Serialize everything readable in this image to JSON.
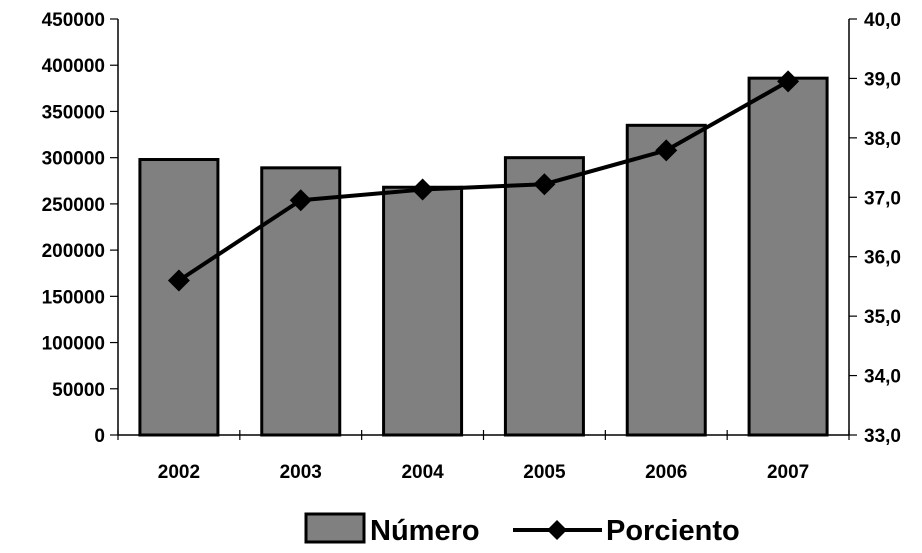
{
  "chart_data": {
    "type": "bar",
    "categories": [
      "2002",
      "2003",
      "2004",
      "2005",
      "2006",
      "2007"
    ],
    "series": [
      {
        "name": "Número",
        "type": "bar",
        "axis": "left",
        "values": [
          298000,
          289000,
          268000,
          300000,
          335000,
          386000
        ]
      },
      {
        "name": "Porciento",
        "type": "line",
        "axis": "right",
        "values": [
          35.6,
          36.95,
          37.13,
          37.22,
          37.79,
          38.95
        ]
      }
    ],
    "y_left": {
      "ylim": [
        0,
        450000
      ],
      "ticks": [
        "0",
        "50000",
        "100000",
        "150000",
        "200000",
        "250000",
        "300000",
        "350000",
        "400000",
        "450000"
      ]
    },
    "y_right": {
      "ylim": [
        33.0,
        40.0
      ],
      "ticks": [
        "33,0",
        "34,0",
        "35,0",
        "36,0",
        "37,0",
        "38,0",
        "39,0",
        "40,0"
      ]
    },
    "grid": false,
    "legend": "bottom",
    "colors": {
      "bar_fill": "#808080",
      "bar_stroke": "#000000",
      "line": "#000000",
      "marker": "#000000"
    },
    "marker": "diamond"
  }
}
